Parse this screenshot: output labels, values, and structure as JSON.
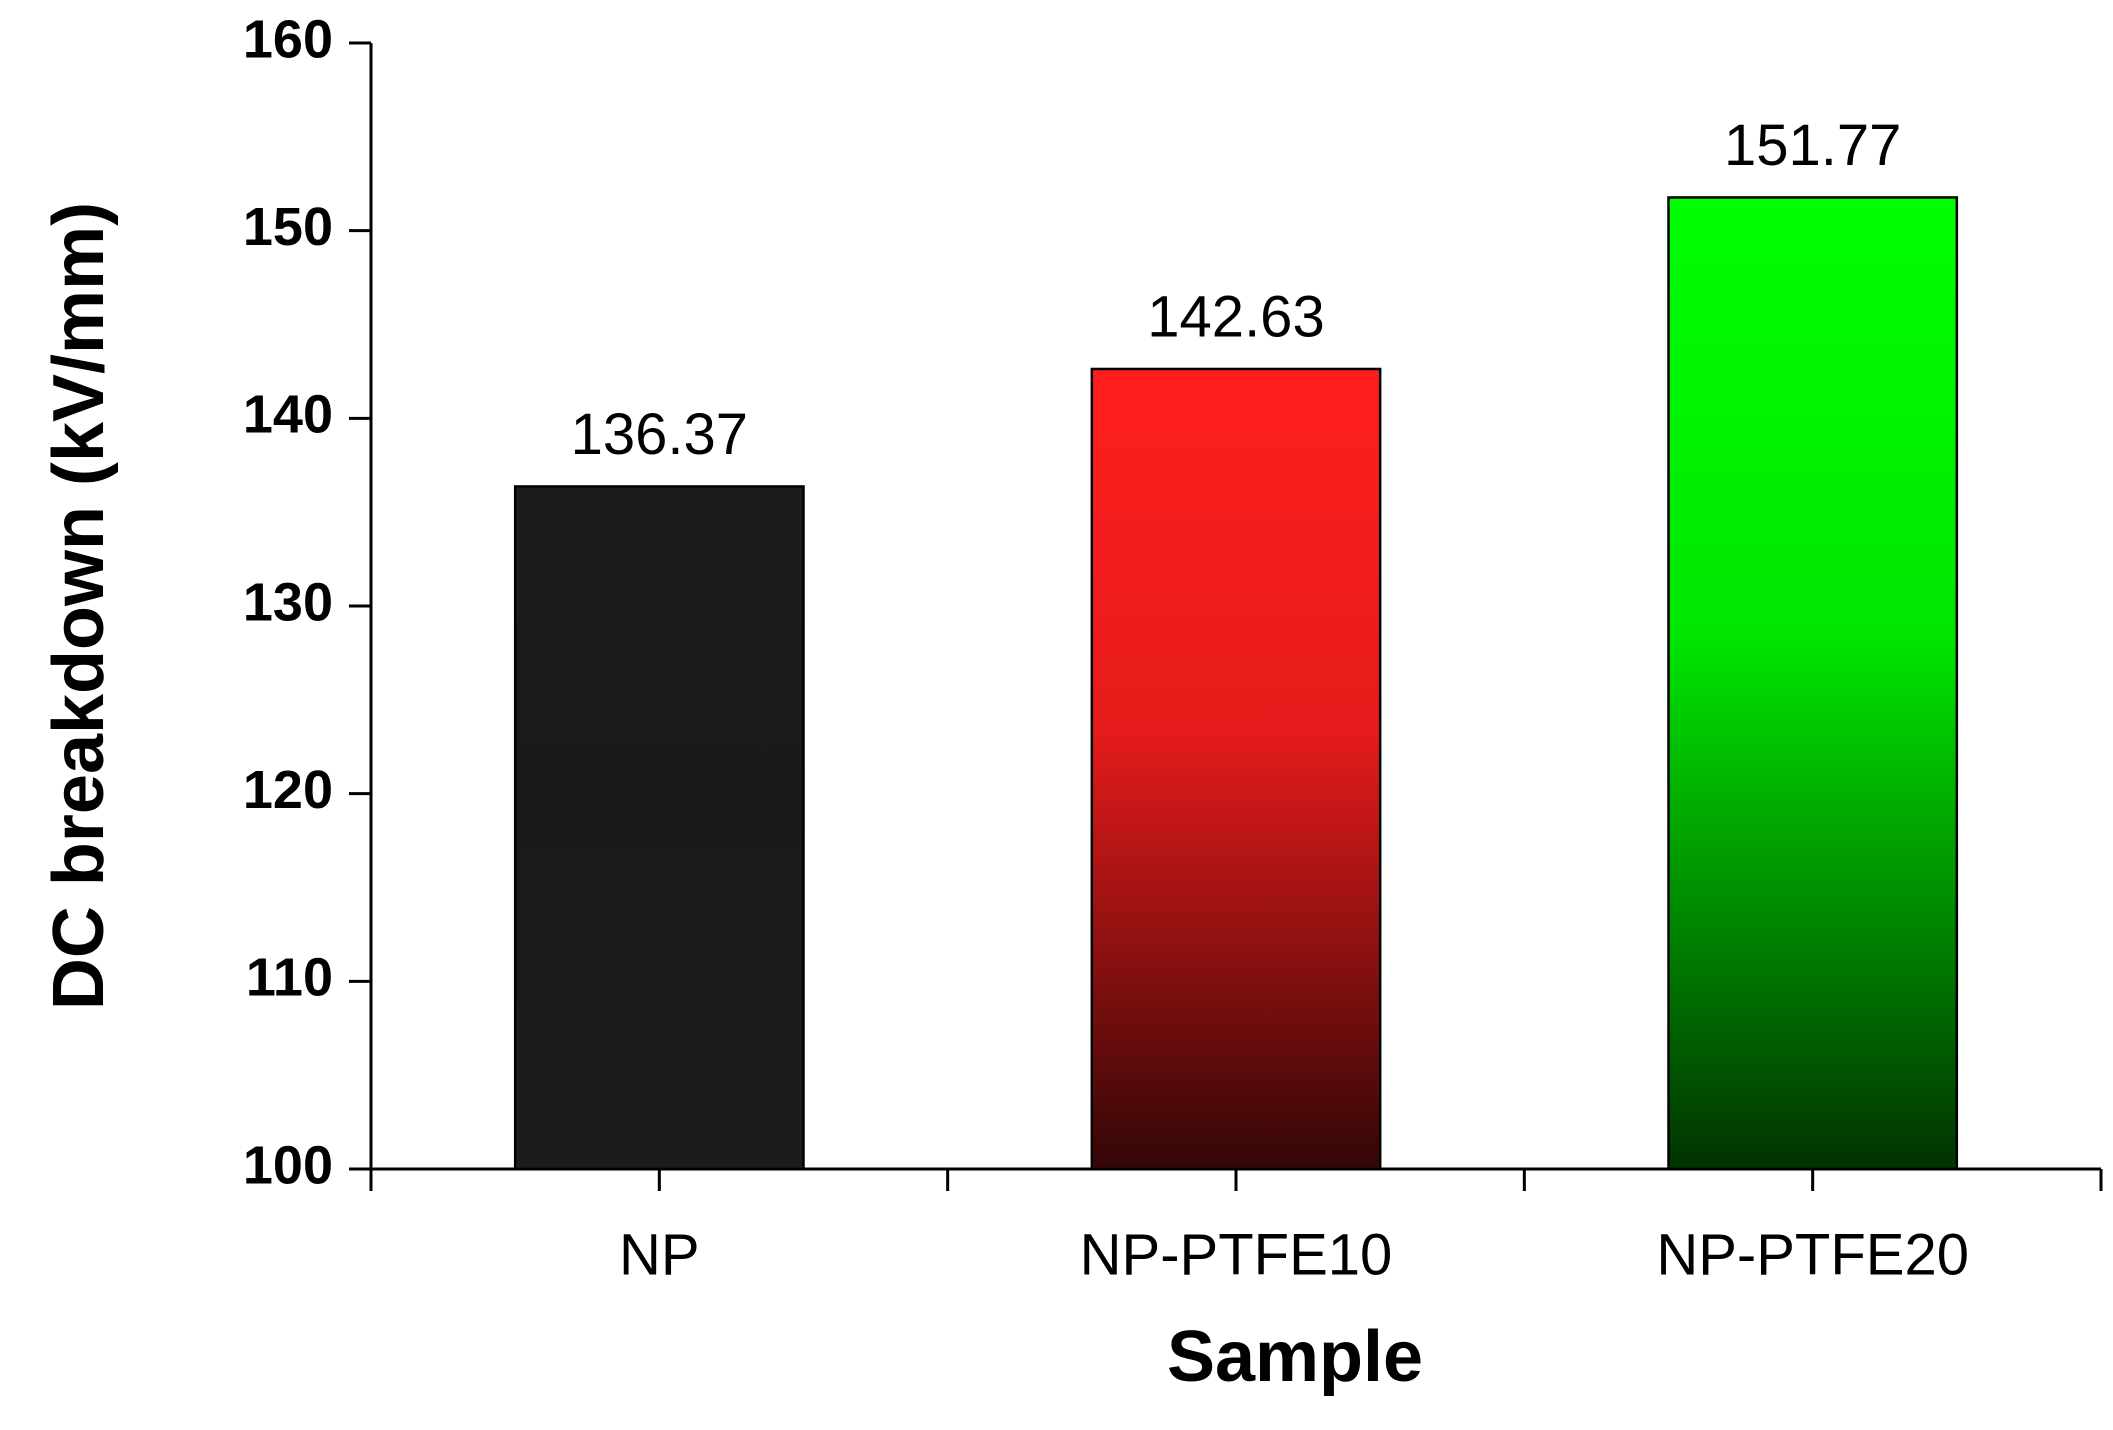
{
  "chart_data": {
    "type": "bar",
    "x_label": "Sample",
    "y_label": "DC breakdown (kV/mm)",
    "categories": [
      "NP",
      "NP-PTFE10",
      "NP-PTFE20"
    ],
    "values": [
      136.37,
      142.63,
      151.77
    ],
    "colors": [
      "#1c1c1c",
      "#ff1e1e",
      "#00ff00"
    ],
    "ylim": [
      100,
      160
    ],
    "yticks": [
      100,
      110,
      120,
      130,
      140,
      150,
      160
    ],
    "grid": false,
    "value_labels_shown": true
  }
}
